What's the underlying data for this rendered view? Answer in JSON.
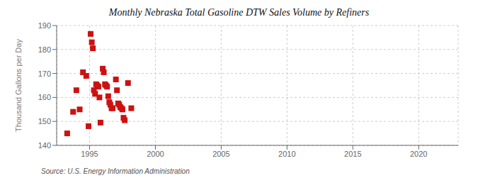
{
  "chart_data": {
    "type": "scatter",
    "title": "Monthly Nebraska Total Gasoline DTW Sales Volume by Refiners",
    "ylabel": "Thousand Gallons per Day",
    "annotation": "Source: U.S. Energy Information Administration",
    "color": "#cc1111",
    "marker": "square",
    "grid": true,
    "xlim": [
      1992.5,
      2023
    ],
    "ylim": [
      140,
      190
    ],
    "xticks": [
      1995,
      2000,
      2005,
      2010,
      2015,
      2020
    ],
    "yticks": [
      140,
      150,
      160,
      170,
      180,
      190
    ],
    "x": [
      1993.3,
      1993.75,
      1994.0,
      1994.25,
      1994.5,
      1994.75,
      1994.92,
      1995.08,
      1995.17,
      1995.25,
      1995.33,
      1995.42,
      1995.5,
      1995.58,
      1995.67,
      1995.75,
      1995.83,
      1996.0,
      1996.08,
      1996.17,
      1996.25,
      1996.33,
      1996.42,
      1996.5,
      1996.58,
      1996.67,
      1996.75,
      1997.0,
      1997.08,
      1997.17,
      1997.25,
      1997.33,
      1997.42,
      1997.5,
      1997.58,
      1997.67,
      1997.92,
      1998.17
    ],
    "values": [
      145.0,
      154.0,
      163.0,
      155.0,
      170.5,
      169.0,
      148.0,
      186.5,
      183.0,
      180.5,
      163.0,
      161.5,
      165.5,
      165.0,
      164.5,
      160.0,
      149.5,
      172.0,
      170.5,
      165.5,
      165.0,
      164.5,
      160.5,
      158.0,
      157.0,
      155.5,
      155.5,
      167.5,
      163.0,
      157.5,
      157.0,
      156.0,
      155.5,
      155.0,
      151.5,
      150.5,
      166.0,
      155.5
    ]
  }
}
